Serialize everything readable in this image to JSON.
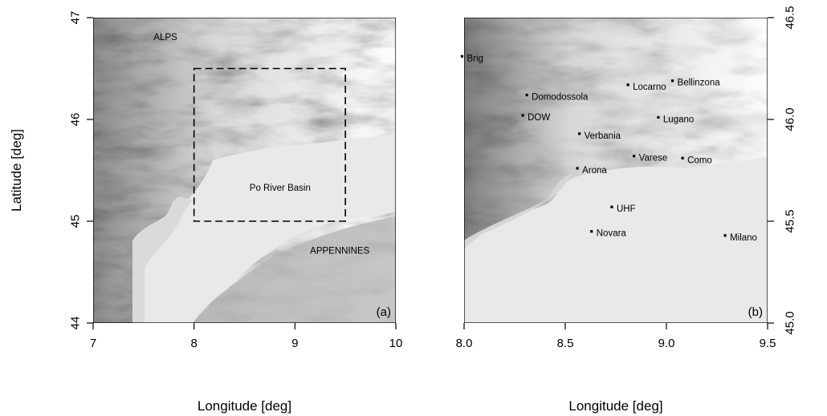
{
  "panels": [
    {
      "id": "a",
      "tag": "(a)",
      "xlabel": "Longitude [deg]",
      "ylabel": "Latitude [deg]",
      "x_ticks": [
        "7",
        "8",
        "9",
        "10"
      ],
      "x_tick_values": [
        7,
        8,
        9,
        10
      ],
      "y_ticks": [
        "44",
        "45",
        "46",
        "47"
      ],
      "y_tick_values": [
        44,
        45,
        46,
        47
      ],
      "xlim": [
        7,
        10
      ],
      "ylim": [
        44,
        47
      ],
      "y_axis_side": "left",
      "regions": [
        {
          "label": "ALPS",
          "lon": 7.6,
          "lat": 46.78
        },
        {
          "label": "Po River Basin",
          "lon": 8.55,
          "lat": 45.3
        },
        {
          "label": "APPENNINES",
          "lon": 9.15,
          "lat": 44.68
        }
      ],
      "box": {
        "lon": [
          8.0,
          9.5
        ],
        "lat": [
          45.0,
          46.5
        ],
        "style": "dashed"
      }
    },
    {
      "id": "b",
      "tag": "(b)",
      "xlabel": "Longitude [deg]",
      "x_ticks": [
        "8.0",
        "8.5",
        "9.0",
        "9.5"
      ],
      "x_tick_values": [
        8.0,
        8.5,
        9.0,
        9.5
      ],
      "y_ticks": [
        "45.0",
        "45.5",
        "46.0",
        "46.5"
      ],
      "y_tick_values": [
        45.0,
        45.5,
        46.0,
        46.5
      ],
      "xlim": [
        8.0,
        9.5
      ],
      "ylim": [
        45.0,
        46.5
      ],
      "y_axis_side": "right",
      "places": [
        {
          "label": "Brig",
          "lon": 7.99,
          "lat": 46.31
        },
        {
          "label": "Domodossola",
          "lon": 8.31,
          "lat": 46.12
        },
        {
          "label": "DOW",
          "lon": 8.29,
          "lat": 46.02
        },
        {
          "label": "Locarno",
          "lon": 8.81,
          "lat": 46.17
        },
        {
          "label": "Bellinzona",
          "lon": 9.03,
          "lat": 46.19
        },
        {
          "label": "Lugano",
          "lon": 8.96,
          "lat": 46.01
        },
        {
          "label": "Verbania",
          "lon": 8.57,
          "lat": 45.93
        },
        {
          "label": "Varese",
          "lon": 8.84,
          "lat": 45.82
        },
        {
          "label": "Como",
          "lon": 9.08,
          "lat": 45.81
        },
        {
          "label": "Arona",
          "lon": 8.56,
          "lat": 45.76
        },
        {
          "label": "UHF",
          "lon": 8.73,
          "lat": 45.57
        },
        {
          "label": "Novara",
          "lon": 8.63,
          "lat": 45.45
        },
        {
          "label": "Milano",
          "lon": 9.29,
          "lat": 45.43
        }
      ]
    }
  ],
  "colors": {
    "terrain_low": "#e9e9e9",
    "terrain_high": "#1e1e1e",
    "frame": "#000000"
  }
}
